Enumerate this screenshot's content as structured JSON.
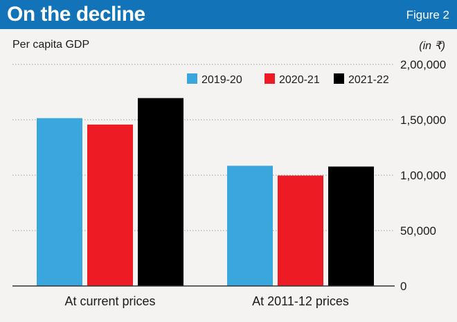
{
  "header": {
    "title": "On the decline",
    "figure_label": "Figure 2",
    "background": "#1273b8"
  },
  "subtitle": "Per capita GDP",
  "unit": "(in ₹)",
  "chart_data": {
    "type": "bar",
    "categories": [
      "At current prices",
      "At 2011-12 prices"
    ],
    "series": [
      {
        "name": "2019-20",
        "color": "#3aa6de",
        "values": [
          151500,
          108500
        ]
      },
      {
        "name": "2020-21",
        "color": "#ed1c24",
        "values": [
          145700,
          99700
        ]
      },
      {
        "name": "2021-22",
        "color": "#000000",
        "values": [
          169600,
          107800
        ]
      }
    ],
    "ylim": [
      0,
      200000
    ],
    "yticks": [
      0,
      50000,
      100000,
      150000,
      200000
    ],
    "ytick_labels": [
      "0",
      "50,000",
      "1,00,000",
      "1,50,000",
      "2,00,000"
    ],
    "y_axis_side": "right",
    "grid": true,
    "legend": "top"
  }
}
